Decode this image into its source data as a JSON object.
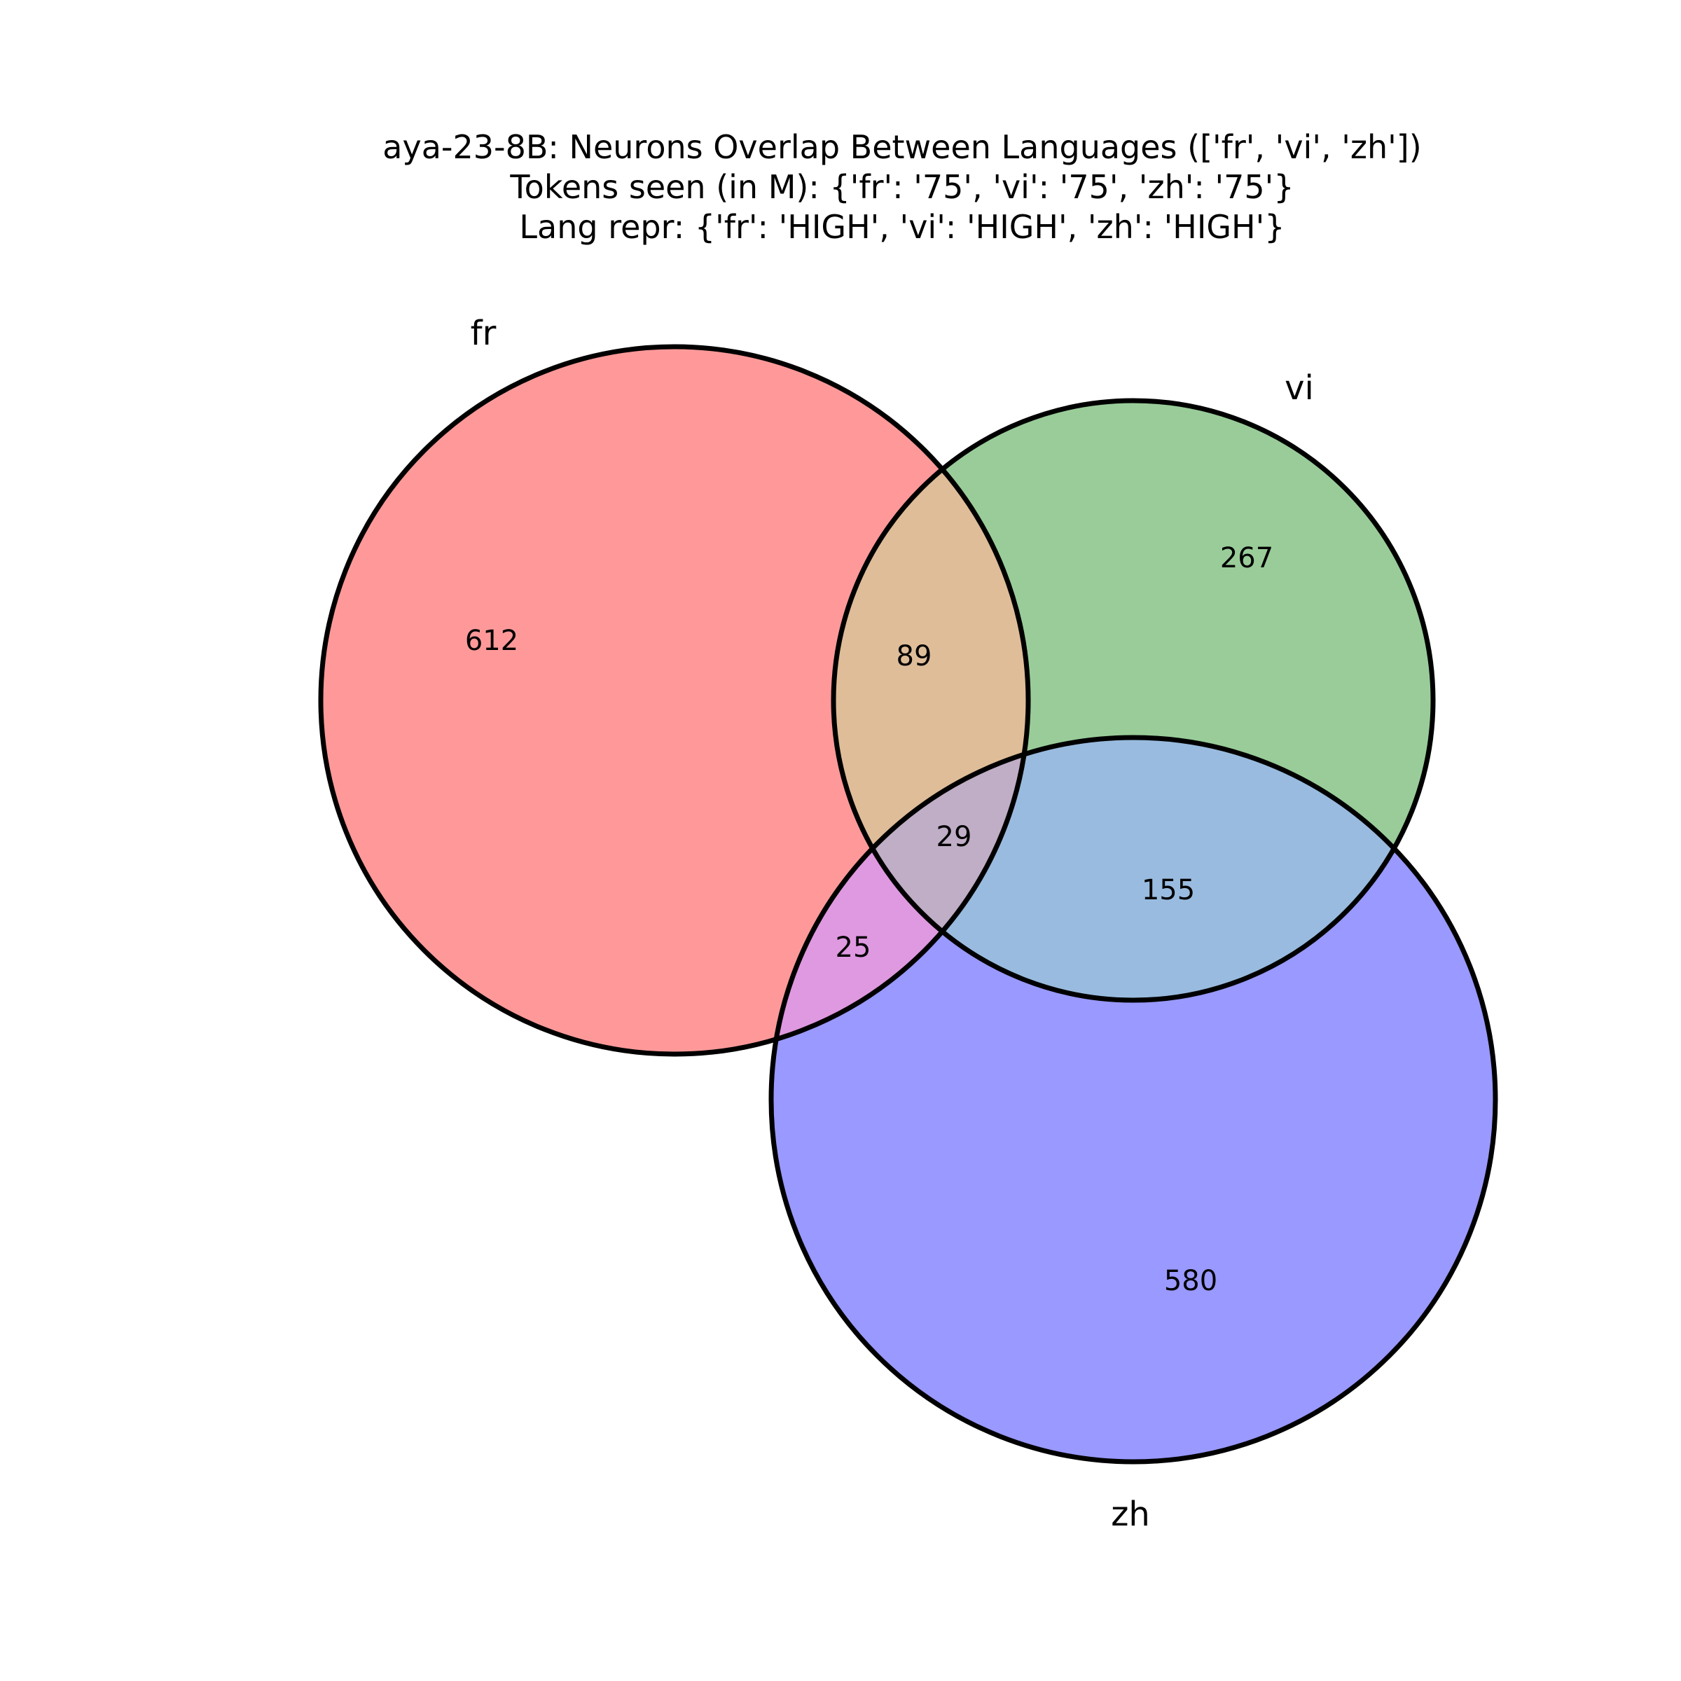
{
  "title": {
    "line1": "aya-23-8B: Neurons Overlap Between Languages (['fr', 'vi', 'zh'])",
    "line2": "Tokens seen (in M): {'fr': '75', 'vi': '75', 'zh': '75'}",
    "line3": "Lang repr: {'fr': 'HIGH', 'vi': 'HIGH', 'zh': 'HIGH'}"
  },
  "sets": [
    {
      "id": "fr",
      "label": "fr",
      "color": "#ff9999"
    },
    {
      "id": "vi",
      "label": "vi",
      "color": "#99cc99"
    },
    {
      "id": "zh",
      "label": "zh",
      "color": "#9999ff"
    }
  ],
  "region_colors": {
    "fr_vi": "#dfbd99",
    "fr_zh": "#df99e0",
    "vi_zh": "#99bbdf",
    "fr_vi_zh": "#bfaec6"
  },
  "regions": {
    "fr_only": "612",
    "vi_only": "267",
    "zh_only": "580",
    "fr_vi": "89",
    "fr_zh": "25",
    "vi_zh": "155",
    "fr_vi_zh": "29"
  }
}
